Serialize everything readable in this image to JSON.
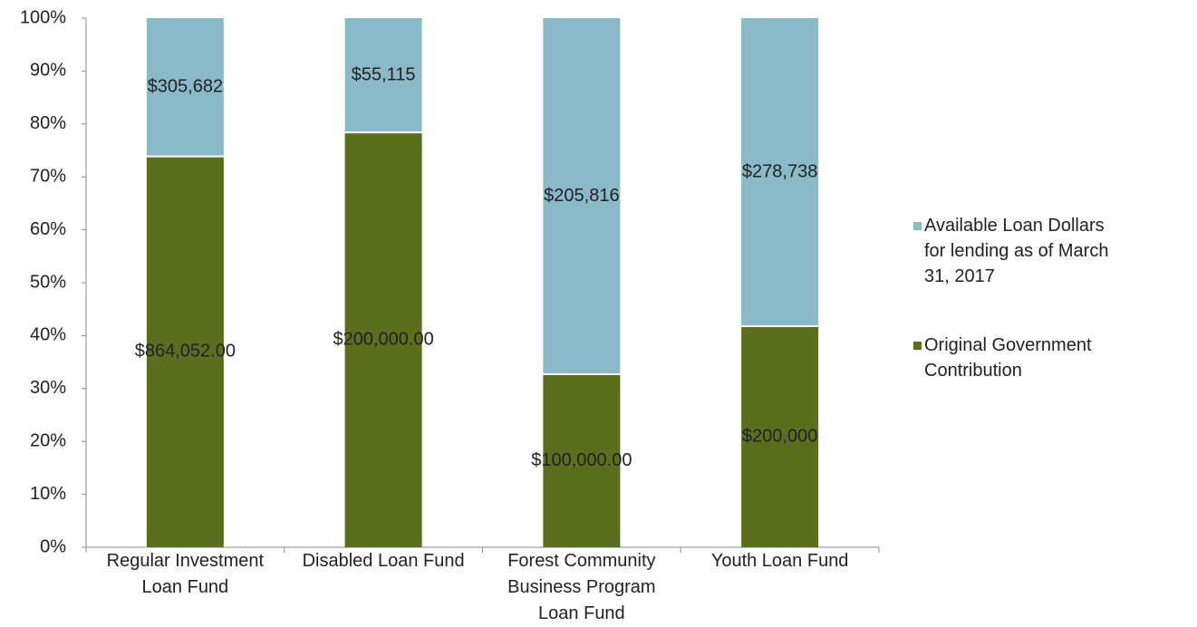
{
  "chart_data": {
    "type": "bar",
    "stacked": "percent",
    "categories": [
      "Regular Investment Loan Fund",
      "Disabled Loan Fund",
      "Forest Community Business Program Loan Fund",
      "Youth Loan Fund"
    ],
    "series": [
      {
        "name": "Original Government Contribution",
        "color": "#5b6e1e",
        "values": [
          864052,
          200000,
          100000,
          200000
        ],
        "value_labels": [
          "$864,052.00",
          "$200,000.00",
          "$100,000.00",
          "$200,000"
        ]
      },
      {
        "name": "Available Loan Dollars for lending as of March 31, 2017",
        "color": "#8ab9c7",
        "values": [
          305682,
          55115,
          205816,
          278738
        ],
        "value_labels": [
          "$305,682",
          "$55,115",
          "$205,816",
          "$278,738"
        ]
      }
    ],
    "ylim": [
      0,
      100
    ],
    "yticks": [
      {
        "value": 0,
        "label": "0%"
      },
      {
        "value": 10,
        "label": "10%"
      },
      {
        "value": 20,
        "label": "20%"
      },
      {
        "value": 30,
        "label": "30%"
      },
      {
        "value": 40,
        "label": "40%"
      },
      {
        "value": 50,
        "label": "50%"
      },
      {
        "value": 60,
        "label": "60%"
      },
      {
        "value": 70,
        "label": "70%"
      },
      {
        "value": 80,
        "label": "80%"
      },
      {
        "value": 90,
        "label": "90%"
      },
      {
        "value": 100,
        "label": "100%"
      }
    ],
    "legend": "right"
  }
}
